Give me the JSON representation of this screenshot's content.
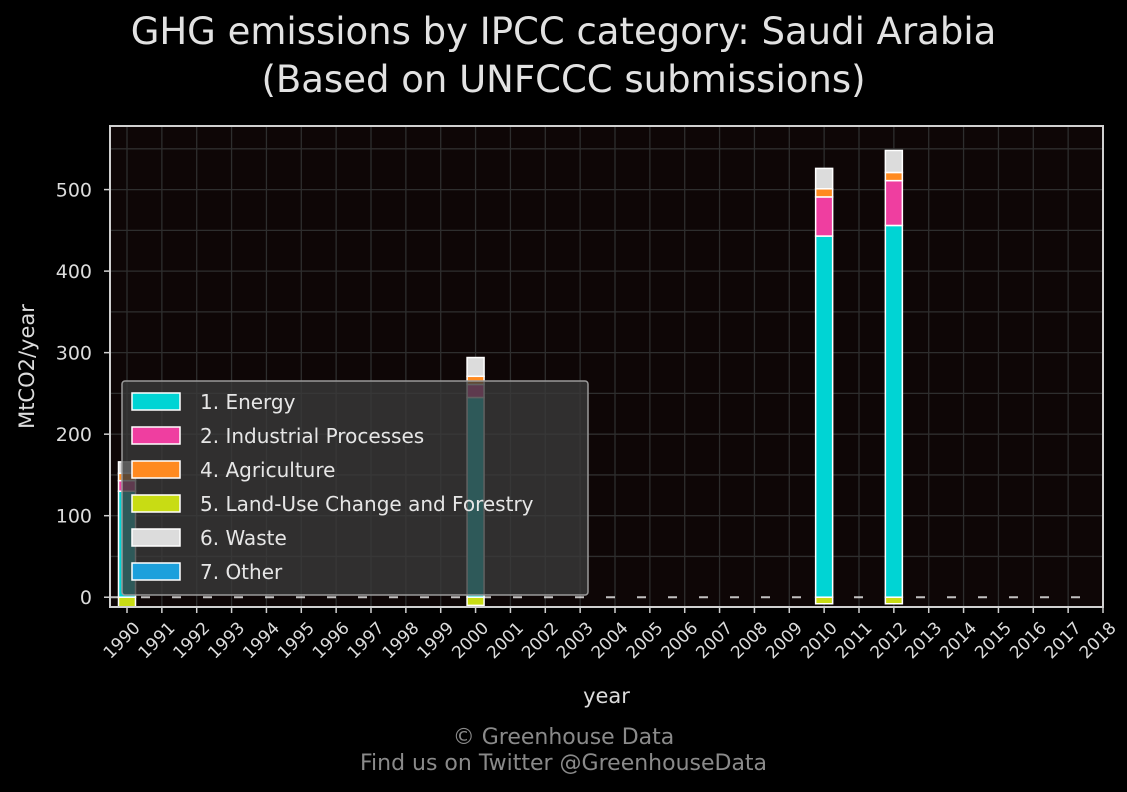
{
  "title": {
    "line1": "GHG emissions by IPCC category: Saudi Arabia",
    "line2": "(Based on UNFCCC submissions)"
  },
  "footer": {
    "line1": "© Greenhouse Data",
    "line2": "Find us on Twitter @GreenhouseData"
  },
  "chart_data": {
    "type": "bar",
    "stacked": true,
    "xlabel": "year",
    "ylabel": "MtCO2/year",
    "ylim": [
      -12,
      578
    ],
    "yticks": [
      0,
      100,
      200,
      300,
      400,
      500
    ],
    "categories": [
      "1990",
      "1991",
      "1992",
      "1993",
      "1994",
      "1995",
      "1996",
      "1997",
      "1998",
      "1999",
      "2000",
      "2001",
      "2002",
      "2003",
      "2004",
      "2005",
      "2006",
      "2007",
      "2008",
      "2009",
      "2010",
      "2011",
      "2012",
      "2013",
      "2014",
      "2015",
      "2016",
      "2017",
      "2018"
    ],
    "grid": true,
    "legend_position": "lower-left",
    "series": [
      {
        "name": "1. Energy",
        "color": "#00d4d4",
        "values": [
          130,
          null,
          null,
          null,
          null,
          null,
          null,
          null,
          null,
          null,
          245,
          null,
          null,
          null,
          null,
          null,
          null,
          null,
          null,
          null,
          443,
          null,
          456,
          null,
          null,
          null,
          null,
          null,
          null
        ]
      },
      {
        "name": "2. Industrial Processes",
        "color": "#ef3ea0",
        "values": [
          13,
          null,
          null,
          null,
          null,
          null,
          null,
          null,
          null,
          null,
          16,
          null,
          null,
          null,
          null,
          null,
          null,
          null,
          null,
          null,
          48,
          null,
          55,
          null,
          null,
          null,
          null,
          null,
          null
        ]
      },
      {
        "name": "4. Agriculture",
        "color": "#ff8a20",
        "values": [
          9,
          null,
          null,
          null,
          null,
          null,
          null,
          null,
          null,
          null,
          10,
          null,
          null,
          null,
          null,
          null,
          null,
          null,
          null,
          null,
          10,
          null,
          10,
          null,
          null,
          null,
          null,
          null,
          null
        ]
      },
      {
        "name": "5. Land-Use Change and Forestry",
        "color": "#c8dc14",
        "values": [
          -12,
          null,
          null,
          null,
          null,
          null,
          null,
          null,
          null,
          null,
          -10,
          null,
          null,
          null,
          null,
          null,
          null,
          null,
          null,
          null,
          -8,
          null,
          -8,
          null,
          null,
          null,
          null,
          null,
          null
        ]
      },
      {
        "name": "6. Waste",
        "color": "#dcdcdc",
        "values": [
          14,
          null,
          null,
          null,
          null,
          null,
          null,
          null,
          null,
          null,
          23,
          null,
          null,
          null,
          null,
          null,
          null,
          null,
          null,
          null,
          25,
          null,
          27,
          null,
          null,
          null,
          null,
          null,
          null
        ]
      },
      {
        "name": "7. Other",
        "color": "#1ca0dc",
        "values": [
          null,
          null,
          null,
          null,
          null,
          null,
          null,
          null,
          null,
          null,
          null,
          null,
          null,
          null,
          null,
          null,
          null,
          null,
          null,
          null,
          null,
          null,
          null,
          null,
          null,
          null,
          null,
          null,
          null
        ]
      }
    ]
  }
}
